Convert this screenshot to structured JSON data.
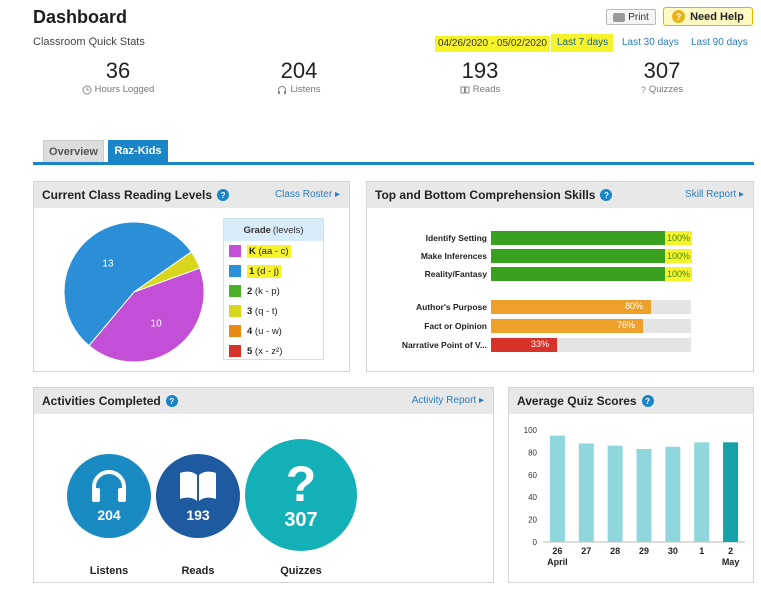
{
  "header": {
    "title": "Dashboard",
    "subtitle": "Classroom Quick Stats",
    "print_label": "Print",
    "help_label": "Need Help",
    "date_range": "04/26/2020 - 05/02/2020",
    "ranges": [
      "Last 7 days",
      "Last 30 days",
      "Last 90 days"
    ]
  },
  "stats": [
    {
      "value": "36",
      "label": "Hours Logged",
      "icon": "clock-icon"
    },
    {
      "value": "204",
      "label": "Listens",
      "icon": "headphones-icon"
    },
    {
      "value": "193",
      "label": "Reads",
      "icon": "book-icon"
    },
    {
      "value": "307",
      "label": "Quizzes",
      "icon": "question-icon"
    }
  ],
  "tabs": [
    {
      "label": "Overview",
      "active": false
    },
    {
      "label": "Raz-Kids",
      "active": true
    }
  ],
  "reading_levels": {
    "title": "Current Class Reading Levels",
    "link": "Class Roster",
    "legend_header": "Grade",
    "legend_header_sub": "(levels)",
    "slices": [
      {
        "label": "10",
        "value": 10,
        "color": "#c24fd6"
      },
      {
        "label": "13",
        "value": 13,
        "color": "#2b8fd8"
      },
      {
        "label": "",
        "value": 1,
        "color": "#d9d61e"
      }
    ],
    "legend": [
      {
        "grade": "K",
        "range": "(aa - c)",
        "color": "#c24fd6",
        "highlight": true
      },
      {
        "grade": "1",
        "range": "(d - j)",
        "color": "#2b8fd8",
        "highlight": true
      },
      {
        "grade": "2",
        "range": "(k - p)",
        "color": "#48b024",
        "highlight": false
      },
      {
        "grade": "3",
        "range": "(q - t)",
        "color": "#d9d61e",
        "highlight": false
      },
      {
        "grade": "4",
        "range": "(u - w)",
        "color": "#e88a12",
        "highlight": false
      },
      {
        "grade": "5",
        "range": "(x - z²)",
        "color": "#d8332a",
        "highlight": false
      }
    ]
  },
  "skills": {
    "title": "Top and Bottom Comprehension Skills",
    "link": "Skill Report",
    "items": [
      {
        "label": "Identify Setting",
        "pct": 100,
        "pct_label": "100%",
        "color": "#3aa01f"
      },
      {
        "label": "Make Inferences",
        "pct": 100,
        "pct_label": "100%",
        "color": "#3aa01f"
      },
      {
        "label": "Reality/Fantasy",
        "pct": 100,
        "pct_label": "100%",
        "color": "#3aa01f"
      },
      {
        "label": "Author's Purpose",
        "pct": 80,
        "pct_label": "80%",
        "color": "#eea12a"
      },
      {
        "label": "Fact or Opinion",
        "pct": 76,
        "pct_label": "76%",
        "color": "#eea12a"
      },
      {
        "label": "Narrative Point of V...",
        "pct": 33,
        "pct_label": "33%",
        "color": "#d8332a"
      }
    ]
  },
  "activities": {
    "title": "Activities Completed",
    "link": "Activity Report",
    "items": [
      {
        "value": "204",
        "label": "Listens",
        "icon": "headphones-icon",
        "color": "#1a8ac2"
      },
      {
        "value": "193",
        "label": "Reads",
        "icon": "book-icon",
        "color": "#1e5aa0"
      },
      {
        "value": "307",
        "label": "Quizzes",
        "icon": "question-icon",
        "color": "#14b0b8"
      }
    ]
  },
  "quiz_scores": {
    "title": "Average Quiz Scores",
    "chart_data": {
      "type": "bar",
      "categories": [
        "26",
        "27",
        "28",
        "29",
        "30",
        "1",
        "2"
      ],
      "month_labels": [
        "April",
        "May"
      ],
      "values": [
        95,
        88,
        86,
        83,
        85,
        89,
        89
      ],
      "ylim": [
        0,
        100
      ],
      "yticks": [
        0,
        20,
        40,
        60,
        80,
        100
      ],
      "colors": [
        "#8fd6dd",
        "#8fd6dd",
        "#8fd6dd",
        "#8fd6dd",
        "#8fd6dd",
        "#8fd6dd",
        "#16a0a8"
      ]
    }
  }
}
